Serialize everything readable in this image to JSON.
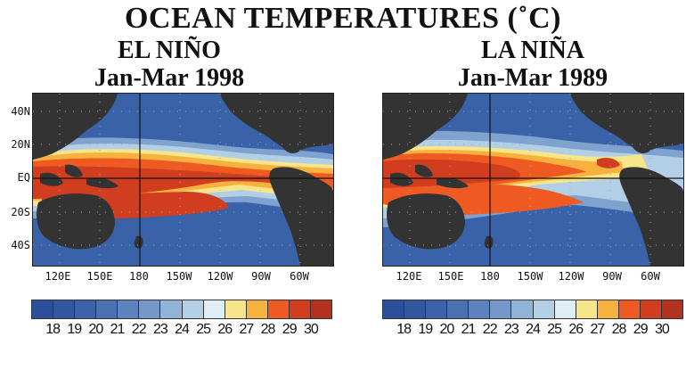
{
  "title": "OCEAN TEMPERATURES (˚C)",
  "panels": [
    {
      "id": "elnino",
      "title_line1": "EL NIÑO",
      "title_line2": "Jan-Mar 1998"
    },
    {
      "id": "lanina",
      "title_line1": "LA NIÑA",
      "title_line2": "Jan-Mar 1989"
    }
  ],
  "lat_labels": [
    "40N",
    "20N",
    "EQ",
    "20S",
    "40S"
  ],
  "lon_labels": [
    "120E",
    "150E",
    "180",
    "150W",
    "120W",
    "90W",
    "60W"
  ],
  "legend": {
    "values": [
      "18",
      "19",
      "20",
      "21",
      "22",
      "23",
      "24",
      "25",
      "26",
      "27",
      "28",
      "29",
      "30"
    ],
    "colors": [
      "#2b4f9a",
      "#33589f",
      "#3d62a8",
      "#4b71b3",
      "#5d82bd",
      "#7598c9",
      "#92b3d8",
      "#b3cfe6",
      "#dfeef4",
      "#f7e58a",
      "#f6b13e",
      "#ee5a22",
      "#d03d1f",
      "#b4311f"
    ]
  },
  "land_color": "#333333"
}
